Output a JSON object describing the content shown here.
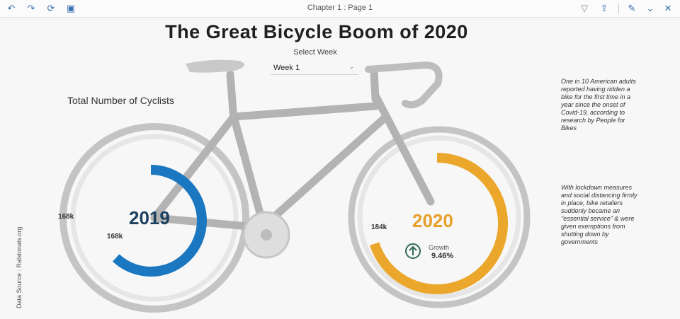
{
  "toolbar": {
    "title": "Chapter 1 : Page 1",
    "undo_icon": "↶",
    "redo_icon": "↷",
    "refresh_icon": "⟳",
    "pause_icon": "▣",
    "filter_icon": "▽",
    "share_icon": "⇪",
    "edit_icon": "✎",
    "collapse_icon": "⌄",
    "close_icon": "✕"
  },
  "title": "The Great Bicycle Boom of 2020",
  "select": {
    "label": "Select Week",
    "value": "Week 1",
    "chevron": "⌄"
  },
  "subtitle": "Total Number of Cyclists",
  "notes": [
    "One in 10 American adults reported having ridden a bike for the first time in a year since the onset of Covid-19, according to research by People for Bikes",
    "With lockdown measures and social distancing firmly in place, bike retailers suddenly became an \"essential service\" & were given exemptions from shutting down by governments"
  ],
  "source": "Data Source : Ralstonats.org",
  "chart_data": {
    "type": "donut",
    "series": [
      {
        "name": "2019",
        "value_label": "168k",
        "outer_label": "168k",
        "fraction": 0.62,
        "color": "#1a77c0"
      },
      {
        "name": "2020",
        "value_label": "184k",
        "fraction": 0.7,
        "color": "#eba72c"
      }
    ],
    "growth": {
      "label": "Growth",
      "value": "9.46%"
    }
  },
  "colors": {
    "frame": "#b5b5b5",
    "frame_dark": "#a3a3a3",
    "year2019": "#1b3f5e",
    "year2020": "#e8a02a",
    "growth_icon": "#2f6b54"
  }
}
